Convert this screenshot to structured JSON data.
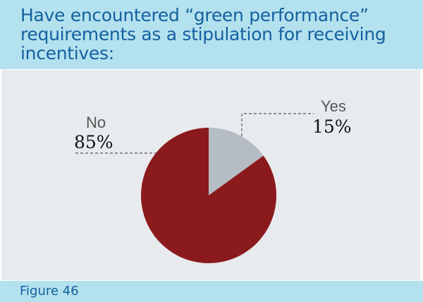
{
  "header": {
    "title": "Have encountered “green performance” requirements as a stipulation for receiving incentives:"
  },
  "footer": {
    "figure_label": "Figure 46"
  },
  "chart_data": {
    "type": "pie",
    "title": "Have encountered “green performance” requirements as a stipulation for receiving incentives:",
    "categories": [
      "Yes",
      "No"
    ],
    "values": [
      15,
      85
    ],
    "labels": [
      "15%",
      "85%"
    ],
    "colors": [
      "#b5bcc3",
      "#8b1a1d"
    ]
  }
}
